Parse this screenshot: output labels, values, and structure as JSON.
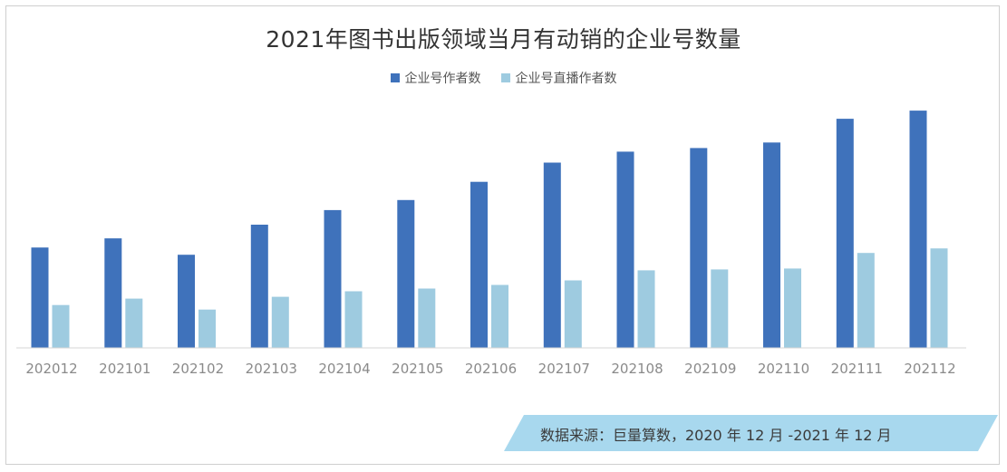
{
  "chart_data": {
    "type": "bar",
    "title": "2021年图书出版领域当月有动销的企业号数量",
    "legend_position": "top-center",
    "grid": false,
    "categories": [
      "202012",
      "202101",
      "202102",
      "202103",
      "202104",
      "202105",
      "202106",
      "202107",
      "202108",
      "202109",
      "202110",
      "202111",
      "202112"
    ],
    "series": [
      {
        "name": "企业号作者数",
        "color": "#3f72bb",
        "values": [
          110,
          120,
          102,
          135,
          151,
          162,
          182,
          203,
          215,
          219,
          225,
          251,
          260
        ]
      },
      {
        "name": "企业号直播作者数",
        "color": "#9ecbe0",
        "values": [
          47,
          54,
          42,
          56,
          62,
          65,
          69,
          74,
          85,
          86,
          87,
          104,
          109
        ]
      }
    ],
    "ylim": [
      0,
      270
    ]
  },
  "source": {
    "text": "数据来源：巨量算数，2020 年 12 月 -2021 年 12 月",
    "banner_color": "#a8d8ee"
  }
}
